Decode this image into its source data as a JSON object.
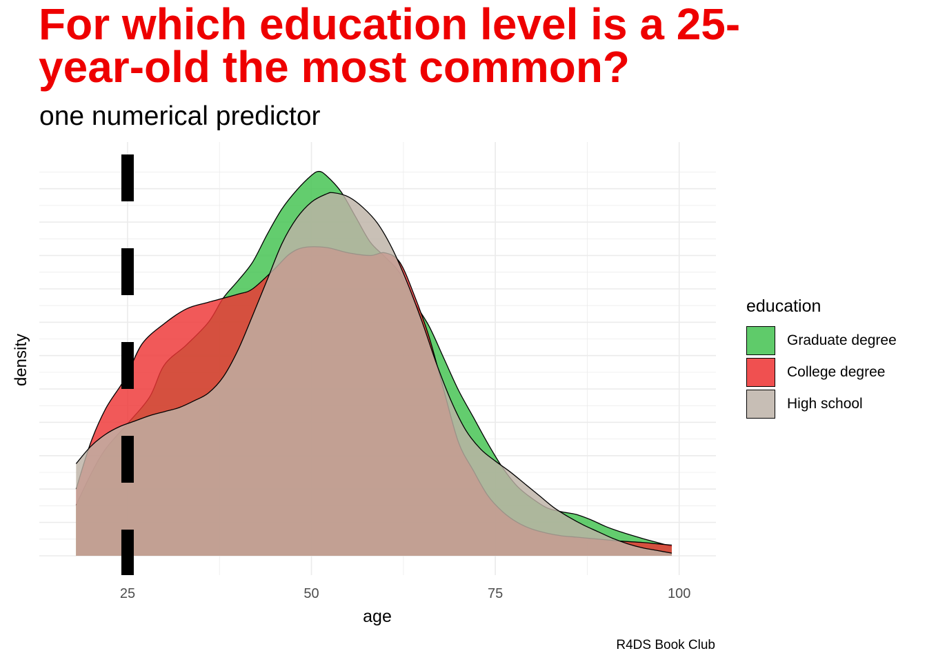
{
  "title": "For which education level is a 25-year-old the most common?",
  "subtitle": "one numerical predictor",
  "caption": "R4DS Book Club",
  "chart_data": {
    "type": "area",
    "subtype": "density",
    "xlabel": "age",
    "ylabel": "density",
    "xlim": [
      13,
      105
    ],
    "ylim": [
      0,
      0.0295
    ],
    "x_ticks": [
      25,
      50,
      75,
      100
    ],
    "grid": true,
    "y_tick_labels_shown": false,
    "reference_line": {
      "x": 25,
      "style": "dashed",
      "color": "#000000"
    },
    "legend": {
      "title": "education",
      "position": "right"
    },
    "series": [
      {
        "name": "Graduate degree",
        "color": "#41c24e",
        "x": [
          18,
          20,
          22,
          25,
          28,
          30,
          33,
          36,
          38,
          40,
          42,
          44,
          46,
          48,
          50,
          51,
          52,
          54,
          56,
          58,
          60,
          62,
          64,
          66,
          68,
          70,
          72,
          74,
          76,
          78,
          80,
          82,
          84,
          86,
          88,
          90,
          92,
          95,
          97,
          99
        ],
        "y": [
          0.0038,
          0.0061,
          0.008,
          0.0099,
          0.0119,
          0.0143,
          0.0158,
          0.0175,
          0.0193,
          0.0206,
          0.022,
          0.0241,
          0.026,
          0.0274,
          0.0285,
          0.0288,
          0.0285,
          0.0273,
          0.0254,
          0.0235,
          0.0224,
          0.0212,
          0.019,
          0.0172,
          0.0148,
          0.0124,
          0.0104,
          0.0084,
          0.0066,
          0.0052,
          0.0043,
          0.0036,
          0.0033,
          0.0031,
          0.0027,
          0.0022,
          0.0018,
          0.0013,
          0.001,
          0.0007
        ]
      },
      {
        "name": "College degree",
        "color": "#ee3535",
        "x": [
          18,
          20,
          22,
          24,
          25,
          27,
          30,
          33,
          36,
          40,
          42,
          45,
          47,
          49,
          52,
          55,
          58,
          60,
          62,
          64,
          66,
          68,
          70,
          72,
          74,
          76,
          78,
          80,
          82,
          84,
          86,
          88,
          90,
          92,
          95,
          97,
          99
        ],
        "y": [
          0.005,
          0.0085,
          0.011,
          0.0127,
          0.0136,
          0.0159,
          0.0174,
          0.0185,
          0.019,
          0.0196,
          0.02,
          0.0215,
          0.0226,
          0.0231,
          0.0231,
          0.0227,
          0.0225,
          0.0227,
          0.022,
          0.0195,
          0.0164,
          0.0124,
          0.0085,
          0.0064,
          0.0045,
          0.0033,
          0.0025,
          0.002,
          0.0017,
          0.0015,
          0.0014,
          0.0013,
          0.0012,
          0.0011,
          0.001,
          0.0009,
          0.0008
        ]
      },
      {
        "name": "High school",
        "color": "#bdb2a6",
        "x": [
          18,
          20,
          22,
          24,
          26,
          28,
          30,
          32,
          34,
          36,
          38,
          40,
          42,
          44,
          46,
          48,
          50,
          52,
          53,
          55,
          57,
          59,
          61,
          63,
          65,
          67,
          69,
          71,
          73,
          75,
          77,
          79,
          81,
          83,
          85,
          87,
          89,
          91,
          93,
          95,
          97,
          99
        ],
        "y": [
          0.0069,
          0.0082,
          0.0091,
          0.0097,
          0.0101,
          0.0105,
          0.0108,
          0.0111,
          0.0116,
          0.0122,
          0.0134,
          0.0154,
          0.018,
          0.0207,
          0.0234,
          0.0253,
          0.0265,
          0.0271,
          0.0272,
          0.0269,
          0.0261,
          0.0249,
          0.023,
          0.0205,
          0.0176,
          0.0144,
          0.0116,
          0.0094,
          0.008,
          0.0071,
          0.0063,
          0.0054,
          0.0045,
          0.0036,
          0.0029,
          0.0023,
          0.0018,
          0.0013,
          0.0009,
          0.0006,
          0.0004,
          0.0002
        ]
      }
    ]
  }
}
